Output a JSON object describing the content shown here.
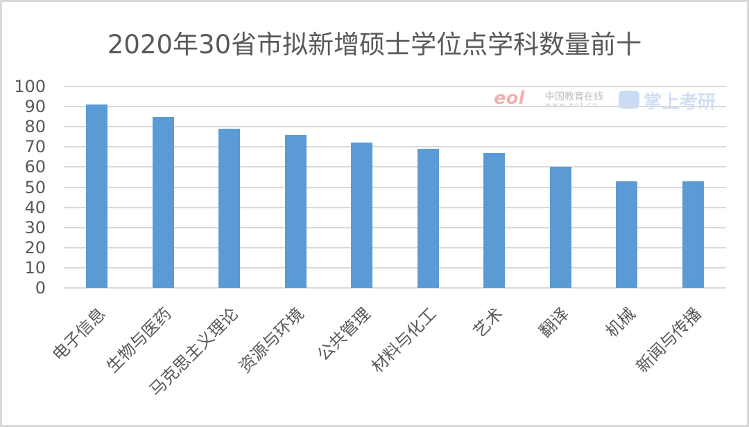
{
  "chart_data": {
    "type": "bar",
    "title": "2020年30省市拟新增硕士学位点学科数量前十",
    "xlabel": "",
    "ylabel": "",
    "ylim": [
      0,
      100
    ],
    "yticks": [
      0,
      10,
      20,
      30,
      40,
      50,
      60,
      70,
      80,
      90,
      100
    ],
    "grid": true,
    "legend": "none",
    "categories": [
      "电子信息",
      "生物与医药",
      "马克思主义理论",
      "资源与环境",
      "公共管理",
      "材料与化工",
      "艺术",
      "翻译",
      "机械",
      "新闻与传播"
    ],
    "values": [
      91,
      85,
      79,
      76,
      72,
      69,
      67,
      60,
      53,
      53
    ],
    "bar_color": "#5b9bd5"
  },
  "watermark": {
    "eol": "eol",
    "eol_cn": "中国教育在线",
    "eol_url": "www.eol.cn",
    "brand": "掌上考研"
  }
}
